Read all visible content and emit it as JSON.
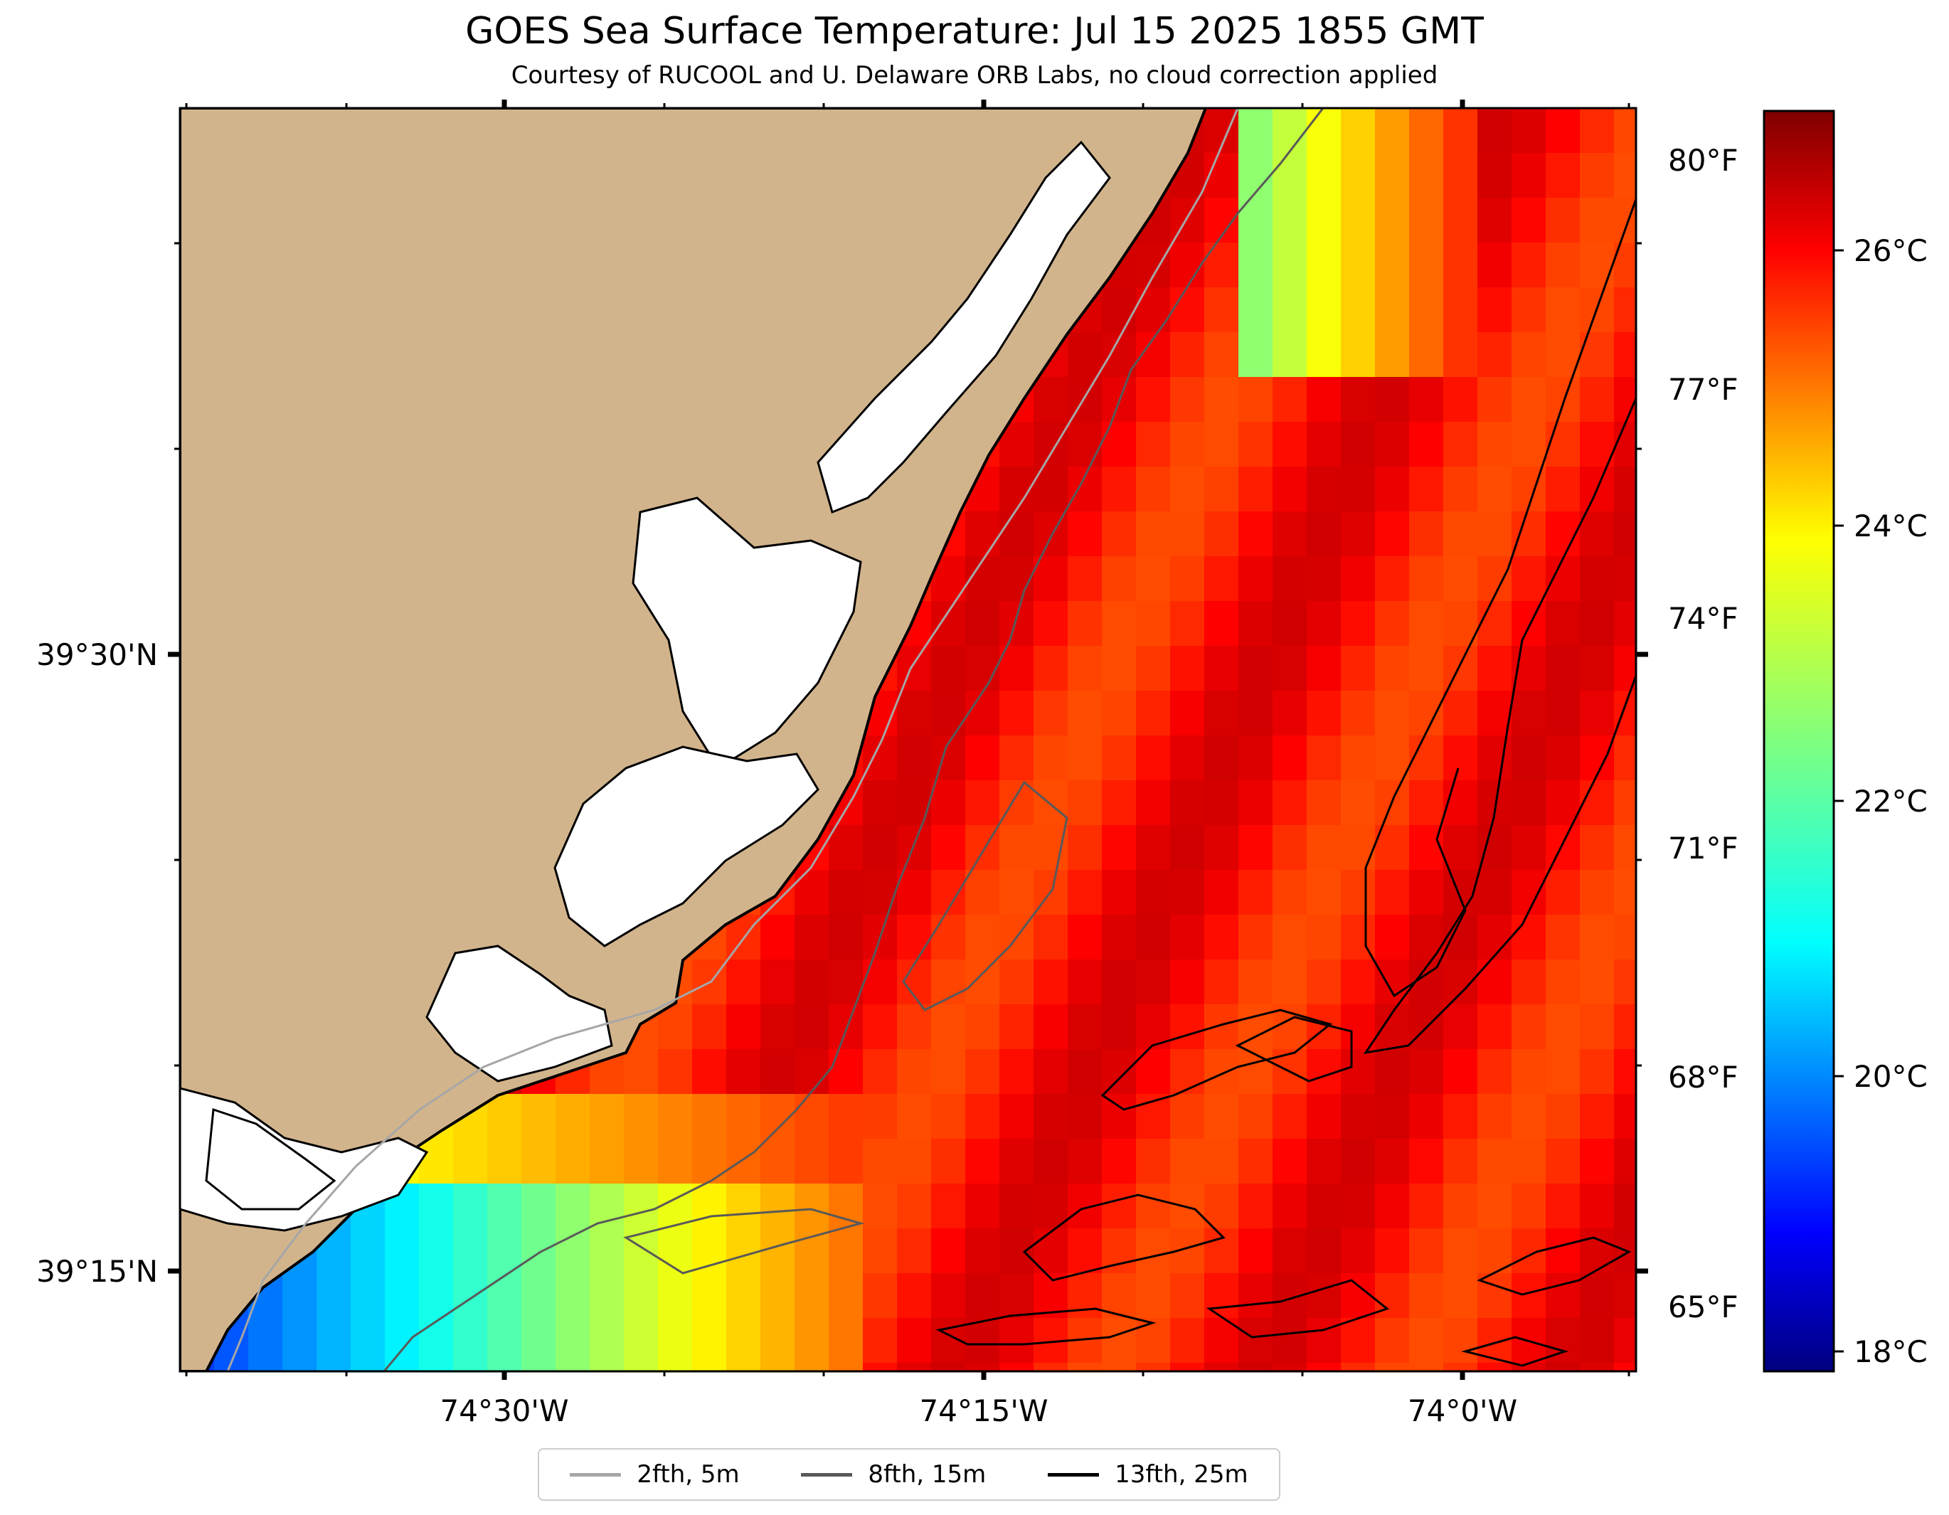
{
  "title": "GOES Sea Surface Temperature: Jul 15 2025 1855 GMT",
  "subtitle": "Courtesy of RUCOOL and U. Delaware ORB Labs, no cloud correction applied",
  "map": {
    "lat_labels": [
      "39°30'N",
      "39°15'N"
    ],
    "lon_labels": [
      "74°30'W",
      "74°15'W",
      "74°0'W"
    ],
    "land_color": "#d2b48c",
    "coast_color": "#000000"
  },
  "colorbar": {
    "celsius_labels": [
      "26°C",
      "24°C",
      "22°C",
      "20°C",
      "18°C"
    ],
    "fahrenheit_labels": [
      "80°F",
      "77°F",
      "74°F",
      "71°F",
      "68°F",
      "65°F"
    ],
    "colormap": "jet",
    "range_celsius": [
      17.9,
      27.8
    ]
  },
  "legend": {
    "items": [
      {
        "label": "2fth, 5m",
        "color": "#a6a6a6"
      },
      {
        "label": "8fth, 15m",
        "color": "#595959"
      },
      {
        "label": "13fth, 25m",
        "color": "#000000"
      }
    ]
  }
}
